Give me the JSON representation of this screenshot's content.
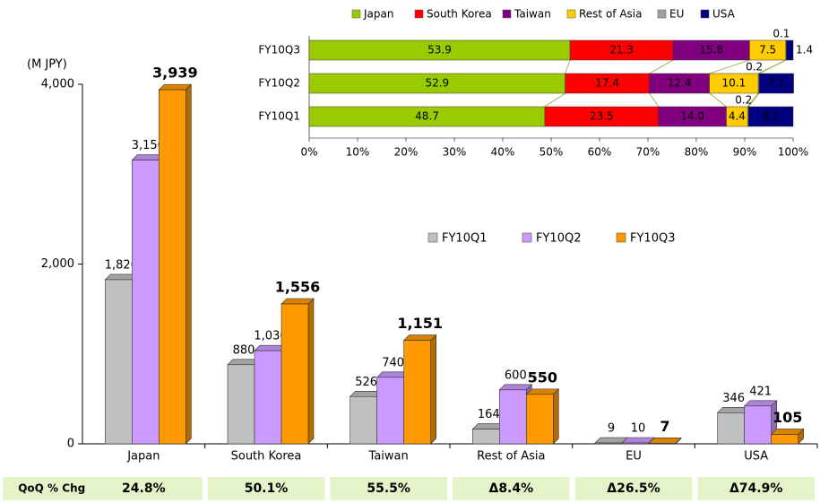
{
  "chart_data": [
    {
      "type": "bar3d",
      "y_axis_label": "(M JPY)",
      "categories": [
        "Japan",
        "South Korea",
        "Taiwan",
        "Rest of Asia",
        "EU",
        "USA"
      ],
      "series": [
        {
          "name": "FY10Q1",
          "color": "#c0c0c0",
          "values": [
            1826,
            880,
            526,
            164,
            9,
            346
          ],
          "value_labels": [
            "1,826",
            "880",
            "526",
            "164",
            "9",
            "346"
          ]
        },
        {
          "name": "FY10Q2",
          "color": "#cc99ff",
          "values": [
            3156,
            1036,
            740,
            600,
            10,
            421
          ],
          "value_labels": [
            "3,156",
            "1,036",
            "740",
            "600",
            "10",
            "421"
          ]
        },
        {
          "name": "FY10Q3",
          "color": "#ff9900",
          "values": [
            3939,
            1556,
            1151,
            550,
            7,
            105
          ],
          "value_labels": [
            "3,939",
            "1,556",
            "1,151",
            "550",
            "7",
            "105"
          ]
        }
      ],
      "ylim": [
        0,
        4000
      ],
      "yticks": [
        0,
        {
          "value": 2000,
          "label": "2,000"
        },
        {
          "value": 4000,
          "label": "4,000"
        }
      ],
      "legend": "center"
    },
    {
      "type": "stacked_hbar",
      "categories": [
        "FY10Q1",
        "FY10Q2",
        "FY10Q3"
      ],
      "series": [
        {
          "name": "Japan",
          "color": "#99cc00",
          "values": [
            48.7,
            52.9,
            53.9
          ]
        },
        {
          "name": "South Korea",
          "color": "#ff0000",
          "values": [
            23.5,
            17.4,
            21.3
          ]
        },
        {
          "name": "Taiwan",
          "color": "#800080",
          "values": [
            14.0,
            12.4,
            15.8
          ],
          "value_labels": [
            "14.0",
            "12.4",
            "15.8"
          ]
        },
        {
          "name": "Rest of Asia",
          "color": "#ffcc00",
          "values": [
            4.4,
            10.1,
            7.5
          ]
        },
        {
          "name": "EU",
          "color": "#a0a0a0",
          "values": [
            0.2,
            0.2,
            0.1
          ]
        },
        {
          "name": "USA",
          "color": "#000080",
          "values": [
            9.2,
            7.1,
            1.4
          ]
        }
      ],
      "xlim": [
        0,
        100
      ],
      "xticks": [
        {
          "value": 0,
          "label": "0%"
        },
        {
          "value": 10,
          "label": "10%"
        },
        {
          "value": 20,
          "label": "20%"
        },
        {
          "value": 30,
          "label": "30%"
        },
        {
          "value": 40,
          "label": "40%"
        },
        {
          "value": 50,
          "label": "50%"
        },
        {
          "value": 60,
          "label": "60%"
        },
        {
          "value": 70,
          "label": "70%"
        },
        {
          "value": 80,
          "label": "80%"
        },
        {
          "value": 90,
          "label": "90%"
        },
        {
          "value": 100,
          "label": "100%"
        }
      ],
      "legend": "top"
    }
  ],
  "qoq_row": {
    "header": "QoQ % Chg.",
    "cells": [
      "24.8%",
      "50.1%",
      "55.5%",
      "Δ8.4%",
      "Δ26.5%",
      "Δ74.9%"
    ]
  }
}
